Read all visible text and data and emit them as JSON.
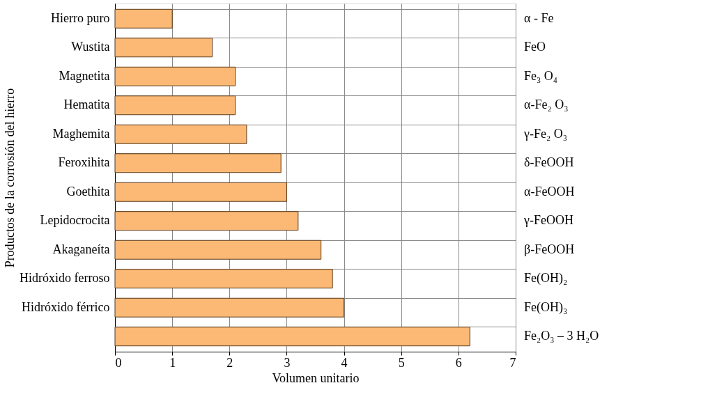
{
  "chart_data": {
    "type": "bar",
    "orientation": "horizontal",
    "xlabel": "Volumen unitario",
    "ylabel": "Productos de la corrosión del hierro",
    "categories": [
      "Hierro puro",
      "Wustita",
      "Magnetita",
      "Hematita",
      "Maghemita",
      "Feroxihita",
      "Goethita",
      "Lepidocrocita",
      "Akaganeíta",
      "Hidróxido ferroso",
      "Hidróxido férrico",
      null
    ],
    "values": [
      1.0,
      1.7,
      2.1,
      2.1,
      2.3,
      2.9,
      3.0,
      3.2,
      3.6,
      3.8,
      4.0,
      6.2
    ],
    "color": "#fbb975",
    "xlim": [
      0,
      7
    ],
    "xticks": [
      0,
      1,
      2,
      3,
      4,
      5,
      6,
      7
    ],
    "grid": true,
    "annotations": [
      "α - Fe",
      "FeO",
      "Fe₃ O₄",
      "α-Fe₂ O₃",
      "γ-Fe₂ O₃",
      "δ-FeOOH",
      "α-FeOOH",
      "γ-FeOOH",
      "β-FeOOH",
      "Fe(OH)₂",
      "Fe(OH)₃",
      "Fe₂O₃ – 3 H₂O"
    ]
  }
}
